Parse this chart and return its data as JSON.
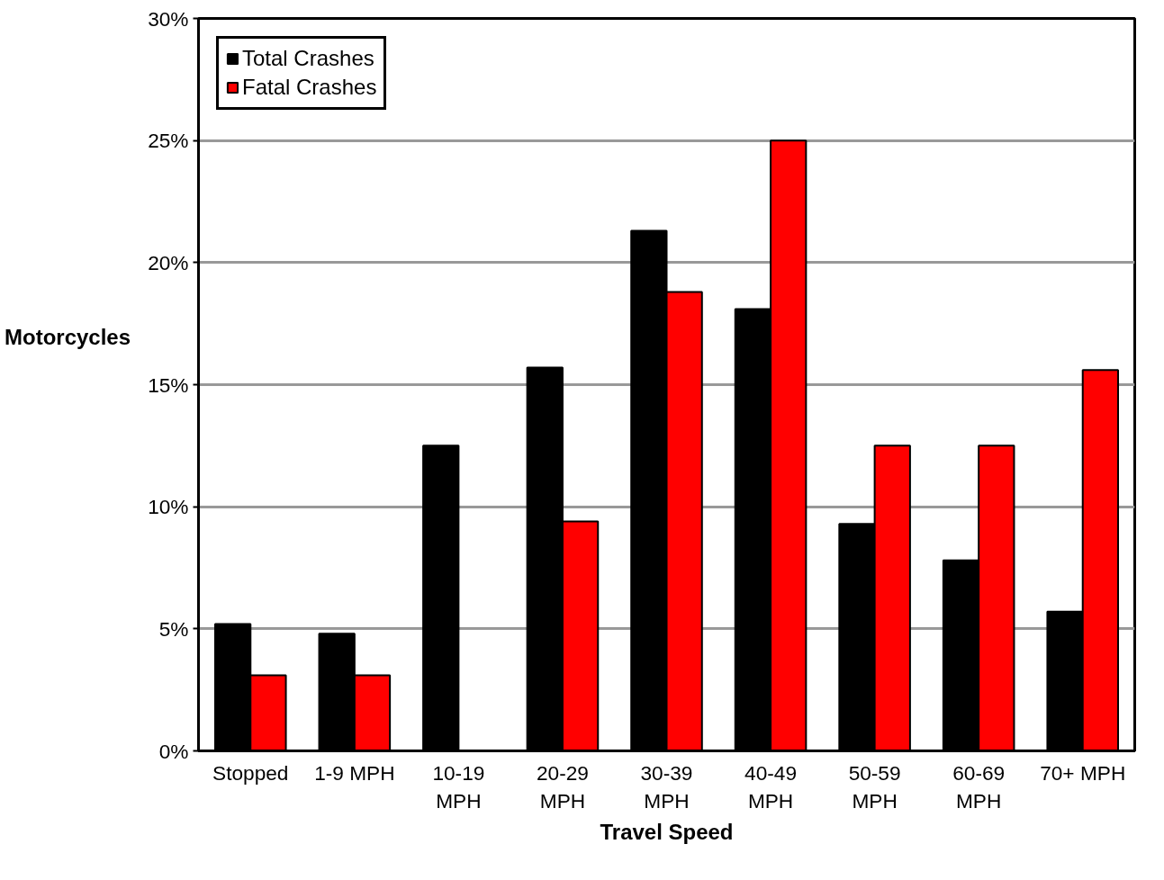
{
  "chart_data": {
    "type": "bar",
    "xlabel": "Travel Speed",
    "ylabel": "Motorcycles",
    "categories": [
      "Stopped",
      "1-9 MPH",
      "10-19\nMPH",
      "20-29\nMPH",
      "30-39\nMPH",
      "40-49\nMPH",
      "50-59\nMPH",
      "60-69\nMPH",
      "70+ MPH"
    ],
    "series": [
      {
        "name": "Total Crashes",
        "color": "#000000",
        "values": [
          5.2,
          4.8,
          12.5,
          15.7,
          21.3,
          18.1,
          9.3,
          7.8,
          5.7
        ]
      },
      {
        "name": "Fatal Crashes",
        "color": "#ff0000",
        "values": [
          3.1,
          3.1,
          0,
          9.4,
          18.8,
          25.0,
          12.5,
          12.5,
          15.6
        ]
      }
    ],
    "ylim": [
      0,
      30
    ],
    "yticks": [
      {
        "value": 0,
        "label": "0%"
      },
      {
        "value": 5,
        "label": "5%"
      },
      {
        "value": 10,
        "label": "10%"
      },
      {
        "value": 15,
        "label": "15%"
      },
      {
        "value": 20,
        "label": "20%"
      },
      {
        "value": 25,
        "label": "25%"
      },
      {
        "value": 30,
        "label": "30%"
      }
    ],
    "grid": "y",
    "legend": "top left"
  }
}
